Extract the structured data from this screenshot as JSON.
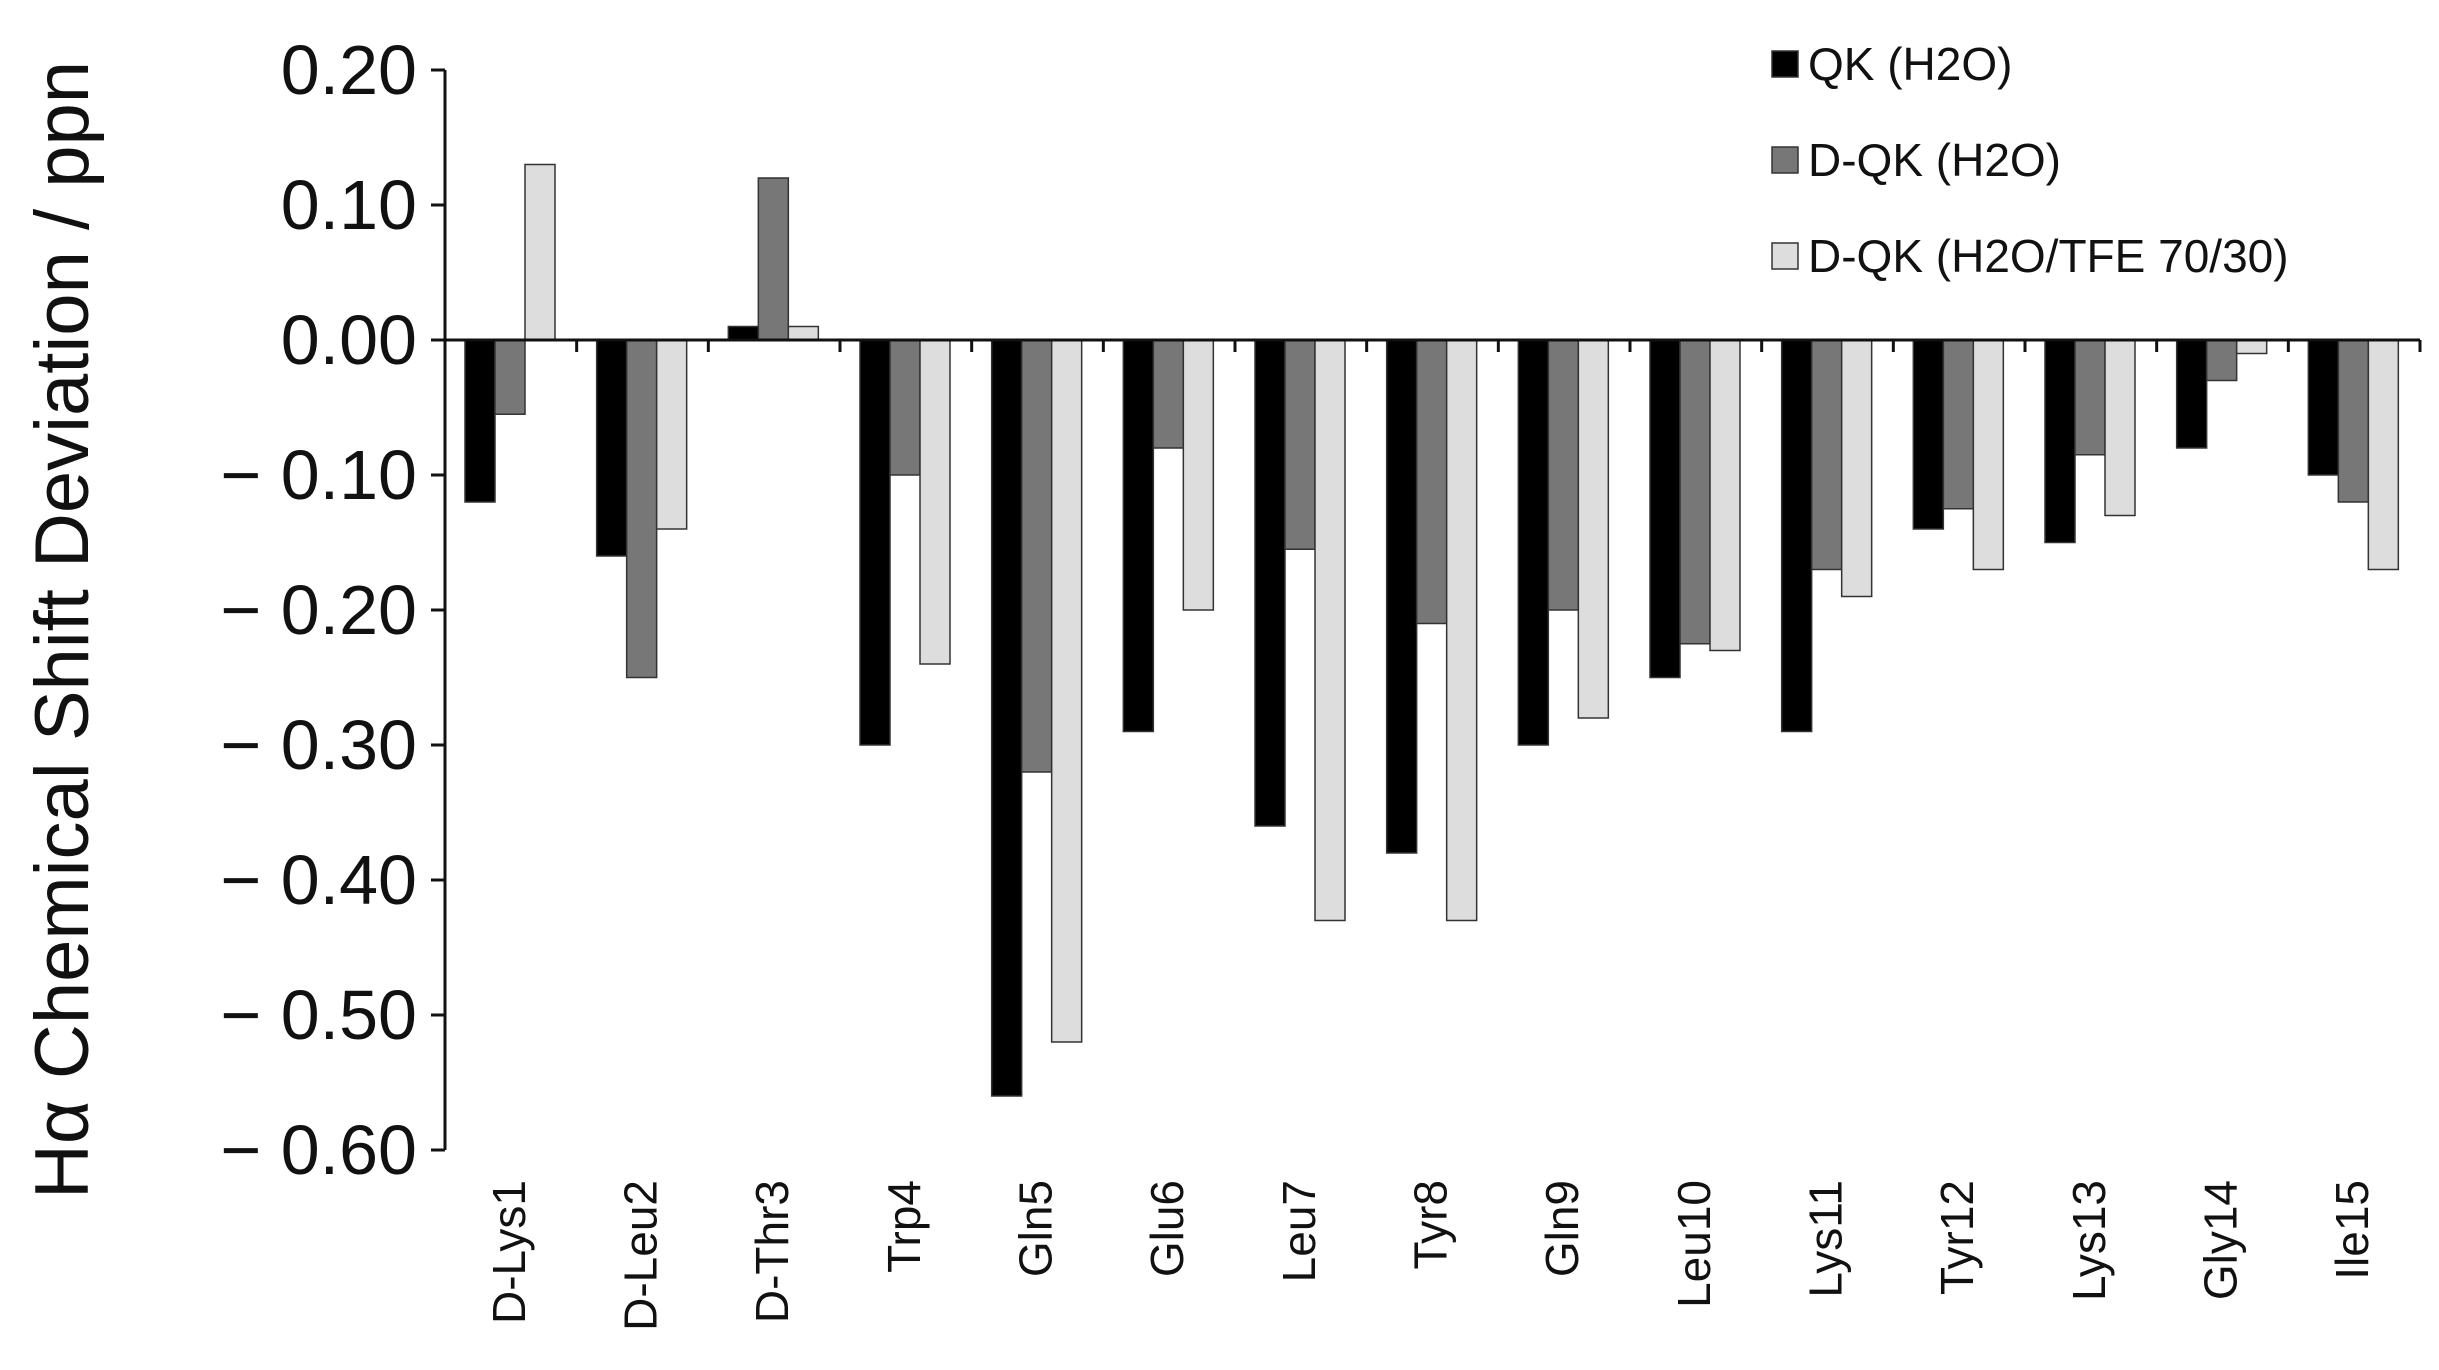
{
  "chart_data": {
    "type": "bar",
    "ylabel": "Hα Chemical Shift Deviation / ppn",
    "xlabel": "",
    "ylim": [
      -0.6,
      0.2
    ],
    "yticks": [
      0.2,
      0.1,
      0.0,
      -0.1,
      -0.2,
      -0.3,
      -0.4,
      -0.5,
      -0.6
    ],
    "ytick_labels": [
      "0.20",
      "0.10",
      "0.00",
      "− 0.10",
      "− 0.20",
      "− 0.30",
      "− 0.40",
      "− 0.50",
      "− 0.60"
    ],
    "categories": [
      "D-Lys1",
      "D-Leu2",
      "D-Thr3",
      "Trp4",
      "Gln5",
      "Glu6",
      "Leu7",
      "Tyr8",
      "Gln9",
      "Leu10",
      "Lys11",
      "Tyr12",
      "Lys13",
      "Gly14",
      "Ile15"
    ],
    "series": [
      {
        "name": "QK (H2O)",
        "color": "#000000",
        "values": [
          -0.12,
          -0.16,
          0.01,
          -0.3,
          -0.56,
          -0.29,
          -0.36,
          -0.38,
          -0.3,
          -0.25,
          -0.29,
          -0.14,
          -0.15,
          -0.08,
          -0.1
        ]
      },
      {
        "name": "D-QK (H2O)",
        "color": "#777777",
        "values": [
          -0.055,
          -0.25,
          0.12,
          -0.1,
          -0.32,
          -0.08,
          -0.155,
          -0.21,
          -0.2,
          -0.225,
          -0.17,
          -0.125,
          -0.085,
          -0.03,
          -0.12
        ]
      },
      {
        "name": "D-QK (H2O/TFE 70/30)",
        "color": "#dddddd",
        "values": [
          0.13,
          -0.14,
          0.01,
          -0.24,
          -0.52,
          -0.2,
          -0.43,
          -0.43,
          -0.28,
          -0.23,
          -0.19,
          -0.17,
          -0.13,
          -0.01,
          -0.17
        ]
      }
    ],
    "grid": false,
    "legend_position": "top-right"
  }
}
